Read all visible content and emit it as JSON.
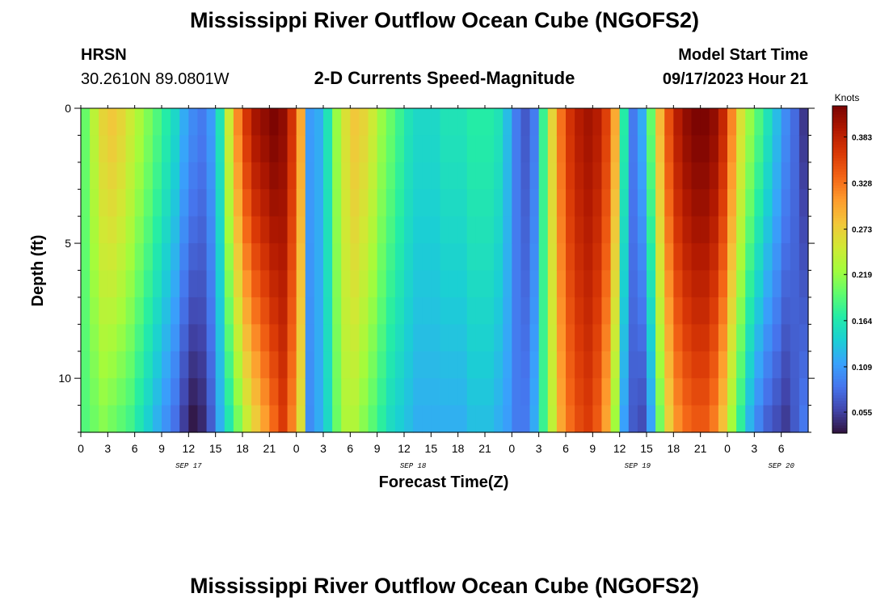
{
  "header": {
    "title": "Mississippi River Outflow Ocean Cube (NGOFS2)",
    "station_id": "HRSN",
    "coordinates": "30.2610N  89.0801W",
    "product": "2-D Currents Speed-Magnitude",
    "model_start_label": "Model Start Time",
    "model_start_value": "09/17/2023 Hour 21"
  },
  "footer": {
    "title": "Mississippi River Outflow Ocean Cube (NGOFS2)"
  },
  "colors": {
    "colormap": [
      "#30123b",
      "#4145ab",
      "#4675ed",
      "#39a2fc",
      "#1bcfd4",
      "#24eca6",
      "#61fc6c",
      "#a4fc3b",
      "#d1e834",
      "#f3c63a",
      "#fe9b2d",
      "#f36315",
      "#d93806",
      "#b11901",
      "#7a0402"
    ]
  },
  "chart_data": {
    "type": "heatmap",
    "title": "2-D Currents Speed-Magnitude",
    "xlabel": "Forecast Time(Z)",
    "ylabel": "Depth (ft)",
    "x_range_hours": [
      0,
      81
    ],
    "x_tick_labels": [
      "0",
      "3",
      "6",
      "9",
      "12",
      "15",
      "18",
      "21",
      "0",
      "3",
      "6",
      "9",
      "12",
      "15",
      "18",
      "21",
      "0",
      "3",
      "6",
      "9",
      "12",
      "15",
      "18",
      "21",
      "0",
      "3",
      "6"
    ],
    "date_labels": [
      {
        "text": "SEP 17",
        "hour": 12
      },
      {
        "text": "SEP 18",
        "hour": 37
      },
      {
        "text": "SEP 19",
        "hour": 62
      },
      {
        "text": "SEP 20",
        "hour": 78
      }
    ],
    "y_range_ft": [
      0,
      12
    ],
    "y_tick_values": [
      0,
      5,
      10
    ],
    "colorbar": {
      "unit": "Knots",
      "min": 0.03,
      "max": 0.42,
      "tick_values": [
        0.055,
        0.109,
        0.164,
        0.219,
        0.273,
        0.328,
        0.383
      ],
      "tick_labels": [
        "0.055",
        "0.109",
        "0.164",
        "0.219",
        "0.273",
        "0.328",
        "0.383"
      ]
    },
    "time_profile": [
      {
        "h": 0,
        "top": 0.2,
        "bot": 0.19
      },
      {
        "h": 1,
        "top": 0.24,
        "bot": 0.2
      },
      {
        "h": 2,
        "top": 0.27,
        "bot": 0.21
      },
      {
        "h": 3,
        "top": 0.28,
        "bot": 0.2
      },
      {
        "h": 4,
        "top": 0.27,
        "bot": 0.19
      },
      {
        "h": 5,
        "top": 0.25,
        "bot": 0.18
      },
      {
        "h": 6,
        "top": 0.23,
        "bot": 0.16
      },
      {
        "h": 7,
        "top": 0.21,
        "bot": 0.14
      },
      {
        "h": 8,
        "top": 0.19,
        "bot": 0.12
      },
      {
        "h": 9,
        "top": 0.17,
        "bot": 0.1
      },
      {
        "h": 10,
        "top": 0.15,
        "bot": 0.08
      },
      {
        "h": 11,
        "top": 0.12,
        "bot": 0.05
      },
      {
        "h": 12,
        "top": 0.1,
        "bot": 0.03
      },
      {
        "h": 13,
        "top": 0.09,
        "bot": 0.04
      },
      {
        "h": 14,
        "top": 0.11,
        "bot": 0.07
      },
      {
        "h": 15,
        "top": 0.16,
        "bot": 0.12
      },
      {
        "h": 16,
        "top": 0.25,
        "bot": 0.16
      },
      {
        "h": 17,
        "top": 0.32,
        "bot": 0.2
      },
      {
        "h": 18,
        "top": 0.37,
        "bot": 0.24
      },
      {
        "h": 19,
        "top": 0.4,
        "bot": 0.27
      },
      {
        "h": 20,
        "top": 0.41,
        "bot": 0.3
      },
      {
        "h": 21,
        "top": 0.42,
        "bot": 0.33
      },
      {
        "h": 22,
        "top": 0.41,
        "bot": 0.36
      },
      {
        "h": 23,
        "top": 0.37,
        "bot": 0.32
      },
      {
        "h": 24,
        "top": 0.3,
        "bot": 0.26
      },
      {
        "h": 25,
        "top": 0.11,
        "bot": 0.1
      },
      {
        "h": 26,
        "top": 0.12,
        "bot": 0.12
      },
      {
        "h": 27,
        "top": 0.16,
        "bot": 0.15
      },
      {
        "h": 28,
        "top": 0.22,
        "bot": 0.2
      },
      {
        "h": 29,
        "top": 0.26,
        "bot": 0.23
      },
      {
        "h": 30,
        "top": 0.28,
        "bot": 0.23
      },
      {
        "h": 31,
        "top": 0.27,
        "bot": 0.21
      },
      {
        "h": 32,
        "top": 0.25,
        "bot": 0.19
      },
      {
        "h": 33,
        "top": 0.22,
        "bot": 0.17
      },
      {
        "h": 34,
        "top": 0.2,
        "bot": 0.15
      },
      {
        "h": 35,
        "top": 0.18,
        "bot": 0.14
      },
      {
        "h": 36,
        "top": 0.16,
        "bot": 0.13
      },
      {
        "h": 37,
        "top": 0.15,
        "bot": 0.12
      },
      {
        "h": 38,
        "top": 0.15,
        "bot": 0.12
      },
      {
        "h": 39,
        "top": 0.15,
        "bot": 0.12
      },
      {
        "h": 40,
        "top": 0.16,
        "bot": 0.12
      },
      {
        "h": 41,
        "top": 0.16,
        "bot": 0.12
      },
      {
        "h": 42,
        "top": 0.16,
        "bot": 0.12
      },
      {
        "h": 43,
        "top": 0.17,
        "bot": 0.13
      },
      {
        "h": 44,
        "top": 0.17,
        "bot": 0.13
      },
      {
        "h": 45,
        "top": 0.17,
        "bot": 0.13
      },
      {
        "h": 46,
        "top": 0.16,
        "bot": 0.12
      },
      {
        "h": 47,
        "top": 0.13,
        "bot": 0.11
      },
      {
        "h": 48,
        "top": 0.09,
        "bot": 0.09
      },
      {
        "h": 49,
        "top": 0.07,
        "bot": 0.09
      },
      {
        "h": 50,
        "top": 0.09,
        "bot": 0.12
      },
      {
        "h": 51,
        "top": 0.18,
        "bot": 0.18
      },
      {
        "h": 52,
        "top": 0.27,
        "bot": 0.24
      },
      {
        "h": 53,
        "top": 0.33,
        "bot": 0.3
      },
      {
        "h": 54,
        "top": 0.37,
        "bot": 0.33
      },
      {
        "h": 55,
        "top": 0.39,
        "bot": 0.35
      },
      {
        "h": 56,
        "top": 0.4,
        "bot": 0.36
      },
      {
        "h": 57,
        "top": 0.39,
        "bot": 0.34
      },
      {
        "h": 58,
        "top": 0.36,
        "bot": 0.3
      },
      {
        "h": 59,
        "top": 0.3,
        "bot": 0.22
      },
      {
        "h": 60,
        "top": 0.17,
        "bot": 0.11
      },
      {
        "h": 61,
        "top": 0.09,
        "bot": 0.07
      },
      {
        "h": 62,
        "top": 0.12,
        "bot": 0.06
      },
      {
        "h": 63,
        "top": 0.2,
        "bot": 0.11
      },
      {
        "h": 64,
        "top": 0.29,
        "bot": 0.2
      },
      {
        "h": 65,
        "top": 0.35,
        "bot": 0.27
      },
      {
        "h": 66,
        "top": 0.39,
        "bot": 0.31
      },
      {
        "h": 67,
        "top": 0.41,
        "bot": 0.33
      },
      {
        "h": 68,
        "top": 0.42,
        "bot": 0.34
      },
      {
        "h": 69,
        "top": 0.42,
        "bot": 0.34
      },
      {
        "h": 70,
        "top": 0.41,
        "bot": 0.32
      },
      {
        "h": 71,
        "top": 0.38,
        "bot": 0.28
      },
      {
        "h": 72,
        "top": 0.32,
        "bot": 0.22
      },
      {
        "h": 73,
        "top": 0.26,
        "bot": 0.17
      },
      {
        "h": 74,
        "top": 0.22,
        "bot": 0.12
      },
      {
        "h": 75,
        "top": 0.19,
        "bot": 0.09
      },
      {
        "h": 76,
        "top": 0.16,
        "bot": 0.07
      },
      {
        "h": 77,
        "top": 0.13,
        "bot": 0.06
      },
      {
        "h": 78,
        "top": 0.1,
        "bot": 0.05
      },
      {
        "h": 79,
        "top": 0.08,
        "bot": 0.07
      },
      {
        "h": 80,
        "top": 0.05,
        "bot": 0.09
      }
    ],
    "depth_shape_note": "top = speed near surface (0 ft), bot = speed near 12 ft depth; intermediate depths interpolate"
  }
}
